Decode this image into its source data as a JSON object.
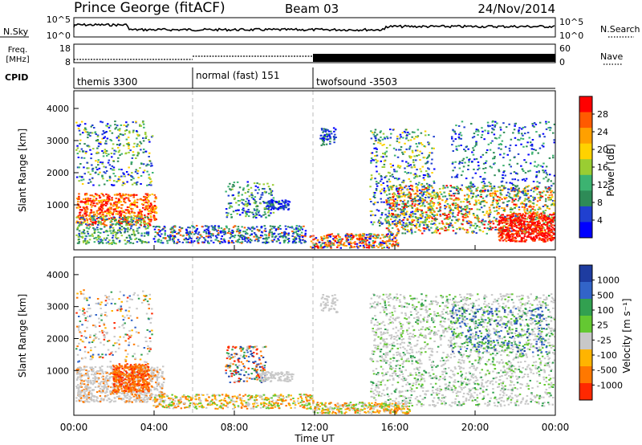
{
  "header": {
    "station": "Prince George (fitACF)",
    "beam": "Beam 03",
    "date": "24/Nov/2014"
  },
  "noise_panel": {
    "left_label": "N.Sky",
    "right_label": "N.Search",
    "left_ticks": [
      "10^5",
      "10^0"
    ],
    "right_ticks": [
      "10^5",
      "10^0"
    ]
  },
  "freq_panel": {
    "left_label_1": "Freq.",
    "left_label_2": "[MHz]",
    "right_label": "Nave",
    "left_ticks": [
      "18",
      "8"
    ],
    "right_ticks": [
      "60",
      "0"
    ]
  },
  "cpid_panel": {
    "label": "CPID",
    "modes": [
      {
        "name": "themis 3300",
        "start_hour": 0,
        "end_hour": 6
      },
      {
        "name": "normal (fast) 151",
        "start_hour": 6,
        "end_hour": 12
      },
      {
        "name": "twofsound -3503",
        "start_hour": 12,
        "end_hour": 24
      }
    ]
  },
  "power_panel": {
    "ylabel": "Slant Range [km]",
    "yticks": [
      "4000",
      "3000",
      "2000",
      "1000"
    ],
    "colorbar_label": "Power [dB]",
    "colorbar_ticks": [
      "28",
      "24",
      "20",
      "16",
      "12",
      "8",
      "4"
    ],
    "colors": [
      "#ff0000",
      "#ff5a00",
      "#ffa000",
      "#ffd200",
      "#9acd32",
      "#3cb371",
      "#2e8b57",
      "#2040d0",
      "#0000ff"
    ]
  },
  "velocity_panel": {
    "ylabel": "Slant Range [km]",
    "yticks": [
      "4000",
      "3000",
      "2000",
      "1000"
    ],
    "colorbar_label": "Velocity [m s⁻¹]",
    "colorbar_ticks": [
      "1000",
      "500",
      "100",
      "25",
      "-25",
      "-100",
      "-500",
      "-1000"
    ],
    "colors": [
      "#1e3ca0",
      "#3264c8",
      "#32a050",
      "#64c832",
      "#c8c8c8",
      "#ffb400",
      "#ff7800",
      "#ff2800"
    ]
  },
  "time_axis": {
    "xlabel": "Time UT",
    "ticks": [
      "00:00",
      "04:00",
      "08:00",
      "12:00",
      "16:00",
      "20:00",
      "00:00"
    ]
  }
}
